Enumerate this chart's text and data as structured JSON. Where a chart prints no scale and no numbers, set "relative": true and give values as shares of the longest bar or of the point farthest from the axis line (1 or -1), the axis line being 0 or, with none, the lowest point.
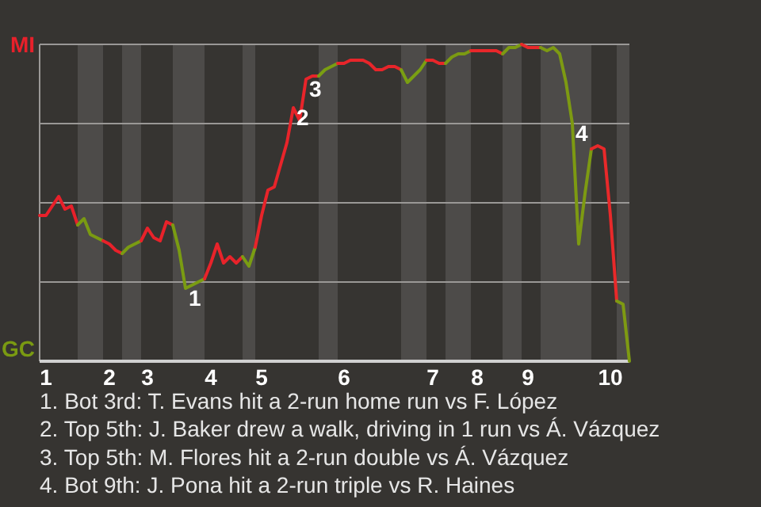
{
  "chart_data": {
    "type": "line",
    "relative": true,
    "categories": [
      null,
      "1",
      null,
      null,
      null,
      null,
      null,
      null,
      null,
      null,
      null,
      "2",
      null,
      null,
      null,
      null,
      null,
      "3",
      null,
      null,
      null,
      null,
      null,
      null,
      null,
      null,
      null,
      "4",
      null,
      null,
      null,
      null,
      null,
      null,
      null,
      "5",
      null,
      null,
      null,
      null,
      null,
      null,
      null,
      null,
      null,
      null,
      null,
      null,
      "6",
      null,
      null,
      null,
      null,
      null,
      null,
      null,
      null,
      null,
      null,
      null,
      null,
      null,
      "7",
      null,
      null,
      null,
      null,
      null,
      null,
      "8",
      null,
      null,
      null,
      null,
      null,
      null,
      null,
      "9",
      null,
      null,
      null,
      null,
      null,
      null,
      null,
      null,
      null,
      null,
      null,
      null,
      "10",
      null,
      null,
      null
    ],
    "grid": "y",
    "marker": "none",
    "line_style": "solid",
    "series": [
      {
        "name": "MI",
        "color": "#e8202a",
        "values": [
          0.46,
          0.46,
          0.49,
          0.52,
          0.48,
          0.49,
          0.43,
          null,
          null,
          null,
          null,
          null,
          null,
          null,
          null,
          null,
          null,
          null,
          null,
          null,
          null,
          null,
          null,
          null,
          null,
          null,
          null,
          null,
          null,
          null,
          null,
          null,
          null,
          null,
          null,
          null,
          null,
          null,
          null,
          null,
          null,
          null,
          null,
          null,
          null,
          null,
          null,
          null,
          null,
          null,
          null,
          null,
          null,
          null,
          null,
          null,
          null,
          null,
          null,
          null,
          null,
          null,
          null,
          null,
          null,
          null,
          null,
          null,
          null,
          null,
          null,
          null,
          null,
          null,
          null,
          null,
          null,
          null,
          null,
          null,
          null,
          null,
          null,
          null,
          null,
          null,
          null,
          null,
          null,
          null,
          null,
          null,
          null,
          null
        ]
      },
      {
        "name": "GC",
        "color": "#7a9a12",
        "values": [
          null,
          null,
          null,
          null,
          null,
          null,
          0.43,
          0.45,
          0.4,
          0.39,
          0.38,
          null,
          null,
          null,
          null,
          null,
          null,
          null,
          null,
          null,
          null,
          null,
          null,
          null,
          null,
          null,
          null,
          null,
          null,
          null,
          null,
          null,
          null,
          null,
          null,
          null,
          null,
          null,
          null,
          null,
          null,
          null,
          null,
          null,
          null,
          null,
          null,
          null,
          null,
          null,
          null,
          null,
          null,
          null,
          null,
          null,
          null,
          null,
          null,
          null,
          null,
          null,
          null,
          null,
          null,
          null,
          null,
          null,
          null,
          null,
          null,
          null,
          null,
          null,
          null,
          null,
          null,
          null,
          null,
          null,
          null,
          null,
          null,
          null,
          null,
          null,
          null,
          null,
          null,
          null,
          null,
          null,
          null,
          null
        ]
      },
      {
        "color": "#e8212a",
        "values": [
          null,
          null,
          null,
          null,
          null,
          null,
          null,
          null,
          null,
          null,
          0.38,
          0.37,
          0.35,
          0.34,
          null,
          null,
          null,
          null,
          null,
          null,
          null,
          null,
          null,
          null,
          null,
          null,
          null,
          null,
          null,
          null,
          null,
          null,
          null,
          null,
          null,
          null,
          null,
          null,
          null,
          null,
          null,
          null,
          null,
          null,
          null,
          null,
          null,
          null,
          null,
          null,
          null,
          null,
          null,
          null,
          null,
          null,
          null,
          null,
          null,
          null,
          null,
          null,
          null,
          null,
          null,
          null,
          null,
          null,
          null,
          null,
          null,
          null,
          null,
          null,
          null,
          null,
          null,
          null,
          null,
          null,
          null,
          null,
          null,
          null,
          null,
          null,
          null,
          null,
          null,
          null,
          null,
          null,
          null,
          null
        ]
      },
      {
        "color": "#7a9b12",
        "values": [
          null,
          null,
          null,
          null,
          null,
          null,
          null,
          null,
          null,
          null,
          null,
          null,
          null,
          0.34,
          0.36,
          0.37,
          0.38,
          null,
          null,
          null,
          null,
          null,
          null,
          null,
          null,
          null,
          null,
          null,
          null,
          null,
          null,
          null,
          null,
          null,
          null,
          null,
          null,
          null,
          null,
          null,
          null,
          null,
          null,
          null,
          null,
          null,
          null,
          null,
          null,
          null,
          null,
          null,
          null,
          null,
          null,
          null,
          null,
          null,
          null,
          null,
          null,
          null,
          null,
          null,
          null,
          null,
          null,
          null,
          null,
          null,
          null,
          null,
          null,
          null,
          null,
          null,
          null,
          null,
          null,
          null,
          null,
          null,
          null,
          null,
          null,
          null,
          null,
          null,
          null,
          null,
          null,
          null,
          null,
          null
        ]
      },
      {
        "color": "#e8222a",
        "values": [
          null,
          null,
          null,
          null,
          null,
          null,
          null,
          null,
          null,
          null,
          null,
          null,
          null,
          null,
          null,
          null,
          0.38,
          0.42,
          0.39,
          0.38,
          0.44,
          0.43,
          null,
          null,
          null,
          null,
          null,
          null,
          null,
          null,
          null,
          null,
          null,
          null,
          null,
          null,
          null,
          null,
          null,
          null,
          null,
          null,
          null,
          null,
          null,
          null,
          null,
          null,
          null,
          null,
          null,
          null,
          null,
          null,
          null,
          null,
          null,
          null,
          null,
          null,
          null,
          null,
          null,
          null,
          null,
          null,
          null,
          null,
          null,
          null,
          null,
          null,
          null,
          null,
          null,
          null,
          null,
          null,
          null,
          null,
          null,
          null,
          null,
          null,
          null,
          null,
          null,
          null,
          null,
          null,
          null,
          null,
          null,
          null
        ]
      },
      {
        "color": "#7a9c12",
        "values": [
          null,
          null,
          null,
          null,
          null,
          null,
          null,
          null,
          null,
          null,
          null,
          null,
          null,
          null,
          null,
          null,
          null,
          null,
          null,
          null,
          null,
          0.43,
          0.35,
          0.23,
          0.24,
          0.25,
          0.26,
          null,
          null,
          null,
          null,
          null,
          null,
          null,
          null,
          null,
          null,
          null,
          null,
          null,
          null,
          null,
          null,
          null,
          null,
          null,
          null,
          null,
          null,
          null,
          null,
          null,
          null,
          null,
          null,
          null,
          null,
          null,
          null,
          null,
          null,
          null,
          null,
          null,
          null,
          null,
          null,
          null,
          null,
          null,
          null,
          null,
          null,
          null,
          null,
          null,
          null,
          null,
          null,
          null,
          null,
          null,
          null,
          null,
          null,
          null,
          null,
          null,
          null,
          null,
          null,
          null,
          null,
          null
        ]
      },
      {
        "color": "#e8232a",
        "values": [
          null,
          null,
          null,
          null,
          null,
          null,
          null,
          null,
          null,
          null,
          null,
          null,
          null,
          null,
          null,
          null,
          null,
          null,
          null,
          null,
          null,
          null,
          null,
          null,
          null,
          null,
          0.26,
          0.31,
          0.37,
          0.31,
          0.33,
          0.31,
          0.33,
          null,
          null,
          null,
          null,
          null,
          null,
          null,
          null,
          null,
          null,
          null,
          null,
          null,
          null,
          null,
          null,
          null,
          null,
          null,
          null,
          null,
          null,
          null,
          null,
          null,
          null,
          null,
          null,
          null,
          null,
          null,
          null,
          null,
          null,
          null,
          null,
          null,
          null,
          null,
          null,
          null,
          null,
          null,
          null,
          null,
          null,
          null,
          null,
          null,
          null,
          null,
          null,
          null,
          null,
          null,
          null,
          null,
          null,
          null,
          null,
          null
        ]
      },
      {
        "color": "#7a9d12",
        "values": [
          null,
          null,
          null,
          null,
          null,
          null,
          null,
          null,
          null,
          null,
          null,
          null,
          null,
          null,
          null,
          null,
          null,
          null,
          null,
          null,
          null,
          null,
          null,
          null,
          null,
          null,
          null,
          null,
          null,
          null,
          null,
          null,
          0.33,
          0.3,
          0.36,
          null,
          null,
          null,
          null,
          null,
          null,
          null,
          null,
          null,
          null,
          null,
          null,
          null,
          null,
          null,
          null,
          null,
          null,
          null,
          null,
          null,
          null,
          null,
          null,
          null,
          null,
          null,
          null,
          null,
          null,
          null,
          null,
          null,
          null,
          null,
          null,
          null,
          null,
          null,
          null,
          null,
          null,
          null,
          null,
          null,
          null,
          null,
          null,
          null,
          null,
          null,
          null,
          null,
          null,
          null,
          null,
          null,
          null,
          null
        ]
      },
      {
        "color": "#e8242a",
        "values": [
          null,
          null,
          null,
          null,
          null,
          null,
          null,
          null,
          null,
          null,
          null,
          null,
          null,
          null,
          null,
          null,
          null,
          null,
          null,
          null,
          null,
          null,
          null,
          null,
          null,
          null,
          null,
          null,
          null,
          null,
          null,
          null,
          null,
          null,
          0.36,
          0.46,
          0.54,
          0.55,
          0.62,
          0.69,
          0.8,
          0.76,
          0.89,
          0.9,
          0.9,
          null,
          null,
          null,
          null,
          null,
          null,
          null,
          null,
          null,
          null,
          null,
          null,
          null,
          null,
          null,
          null,
          null,
          null,
          null,
          null,
          null,
          null,
          null,
          null,
          null,
          null,
          null,
          null,
          null,
          null,
          null,
          null,
          null,
          null,
          null,
          null,
          null,
          null,
          null,
          null,
          null,
          null,
          null,
          null,
          null,
          null,
          null,
          null,
          null
        ]
      },
      {
        "color": "#7a9e12",
        "values": [
          null,
          null,
          null,
          null,
          null,
          null,
          null,
          null,
          null,
          null,
          null,
          null,
          null,
          null,
          null,
          null,
          null,
          null,
          null,
          null,
          null,
          null,
          null,
          null,
          null,
          null,
          null,
          null,
          null,
          null,
          null,
          null,
          null,
          null,
          null,
          null,
          null,
          null,
          null,
          null,
          null,
          null,
          null,
          null,
          0.9,
          0.92,
          0.93,
          0.94,
          null,
          null,
          null,
          null,
          null,
          null,
          null,
          null,
          null,
          null,
          null,
          null,
          null,
          null,
          null,
          null,
          null,
          null,
          null,
          null,
          null,
          null,
          null,
          null,
          null,
          null,
          null,
          null,
          null,
          null,
          null,
          null,
          null,
          null,
          null,
          null,
          null,
          null,
          null,
          null,
          null,
          null,
          null,
          null,
          null,
          null
        ]
      },
      {
        "color": "#e8252a",
        "values": [
          null,
          null,
          null,
          null,
          null,
          null,
          null,
          null,
          null,
          null,
          null,
          null,
          null,
          null,
          null,
          null,
          null,
          null,
          null,
          null,
          null,
          null,
          null,
          null,
          null,
          null,
          null,
          null,
          null,
          null,
          null,
          null,
          null,
          null,
          null,
          null,
          null,
          null,
          null,
          null,
          null,
          null,
          null,
          null,
          null,
          null,
          null,
          0.94,
          0.94,
          0.95,
          0.95,
          0.95,
          0.94,
          0.92,
          0.92,
          0.93,
          0.93,
          0.92,
          null,
          null,
          null,
          null,
          null,
          null,
          null,
          null,
          null,
          null,
          null,
          null,
          null,
          null,
          null,
          null,
          null,
          null,
          null,
          null,
          null,
          null,
          null,
          null,
          null,
          null,
          null,
          null,
          null,
          null,
          null,
          null,
          null,
          null,
          null,
          null
        ]
      },
      {
        "color": "#7a9f12",
        "values": [
          null,
          null,
          null,
          null,
          null,
          null,
          null,
          null,
          null,
          null,
          null,
          null,
          null,
          null,
          null,
          null,
          null,
          null,
          null,
          null,
          null,
          null,
          null,
          null,
          null,
          null,
          null,
          null,
          null,
          null,
          null,
          null,
          null,
          null,
          null,
          null,
          null,
          null,
          null,
          null,
          null,
          null,
          null,
          null,
          null,
          null,
          null,
          null,
          null,
          null,
          null,
          null,
          null,
          null,
          null,
          null,
          null,
          0.92,
          0.88,
          0.9,
          0.92,
          0.95,
          null,
          null,
          null,
          null,
          null,
          null,
          null,
          null,
          null,
          null,
          null,
          null,
          null,
          null,
          null,
          null,
          null,
          null,
          null,
          null,
          null,
          null,
          null,
          null,
          null,
          null,
          null,
          null,
          null,
          null,
          null,
          null
        ]
      },
      {
        "color": "#e8262a",
        "values": [
          null,
          null,
          null,
          null,
          null,
          null,
          null,
          null,
          null,
          null,
          null,
          null,
          null,
          null,
          null,
          null,
          null,
          null,
          null,
          null,
          null,
          null,
          null,
          null,
          null,
          null,
          null,
          null,
          null,
          null,
          null,
          null,
          null,
          null,
          null,
          null,
          null,
          null,
          null,
          null,
          null,
          null,
          null,
          null,
          null,
          null,
          null,
          null,
          null,
          null,
          null,
          null,
          null,
          null,
          null,
          null,
          null,
          null,
          null,
          null,
          null,
          0.95,
          0.95,
          0.94,
          0.94,
          null,
          null,
          null,
          null,
          null,
          null,
          null,
          null,
          null,
          null,
          null,
          null,
          null,
          null,
          null,
          null,
          null,
          null,
          null,
          null,
          null,
          null,
          null,
          null,
          null,
          null,
          null,
          null,
          null
        ]
      },
      {
        "color": "#7b9a12",
        "values": [
          null,
          null,
          null,
          null,
          null,
          null,
          null,
          null,
          null,
          null,
          null,
          null,
          null,
          null,
          null,
          null,
          null,
          null,
          null,
          null,
          null,
          null,
          null,
          null,
          null,
          null,
          null,
          null,
          null,
          null,
          null,
          null,
          null,
          null,
          null,
          null,
          null,
          null,
          null,
          null,
          null,
          null,
          null,
          null,
          null,
          null,
          null,
          null,
          null,
          null,
          null,
          null,
          null,
          null,
          null,
          null,
          null,
          null,
          null,
          null,
          null,
          null,
          null,
          null,
          0.94,
          0.96,
          0.97,
          0.97,
          0.98,
          null,
          null,
          null,
          null,
          null,
          null,
          null,
          null,
          null,
          null,
          null,
          null,
          null,
          null,
          null,
          null,
          null,
          null,
          null,
          null,
          null,
          null,
          null,
          null,
          null
        ]
      },
      {
        "color": "#e8272a",
        "values": [
          null,
          null,
          null,
          null,
          null,
          null,
          null,
          null,
          null,
          null,
          null,
          null,
          null,
          null,
          null,
          null,
          null,
          null,
          null,
          null,
          null,
          null,
          null,
          null,
          null,
          null,
          null,
          null,
          null,
          null,
          null,
          null,
          null,
          null,
          null,
          null,
          null,
          null,
          null,
          null,
          null,
          null,
          null,
          null,
          null,
          null,
          null,
          null,
          null,
          null,
          null,
          null,
          null,
          null,
          null,
          null,
          null,
          null,
          null,
          null,
          null,
          null,
          null,
          null,
          null,
          null,
          null,
          null,
          0.98,
          0.98,
          0.98,
          0.98,
          0.98,
          0.97,
          null,
          null,
          null,
          null,
          null,
          null,
          null,
          null,
          null,
          null,
          null,
          null,
          null,
          null,
          null,
          null,
          null,
          null,
          null,
          null
        ]
      },
      {
        "color": "#7c9a12",
        "values": [
          null,
          null,
          null,
          null,
          null,
          null,
          null,
          null,
          null,
          null,
          null,
          null,
          null,
          null,
          null,
          null,
          null,
          null,
          null,
          null,
          null,
          null,
          null,
          null,
          null,
          null,
          null,
          null,
          null,
          null,
          null,
          null,
          null,
          null,
          null,
          null,
          null,
          null,
          null,
          null,
          null,
          null,
          null,
          null,
          null,
          null,
          null,
          null,
          null,
          null,
          null,
          null,
          null,
          null,
          null,
          null,
          null,
          null,
          null,
          null,
          null,
          null,
          null,
          null,
          null,
          null,
          null,
          null,
          null,
          null,
          null,
          null,
          null,
          0.97,
          0.99,
          0.99,
          1,
          null,
          null,
          null,
          null,
          null,
          null,
          null,
          null,
          null,
          null,
          null,
          null,
          null,
          null,
          null,
          null,
          null
        ]
      },
      {
        "color": "#e8282a",
        "values": [
          null,
          null,
          null,
          null,
          null,
          null,
          null,
          null,
          null,
          null,
          null,
          null,
          null,
          null,
          null,
          null,
          null,
          null,
          null,
          null,
          null,
          null,
          null,
          null,
          null,
          null,
          null,
          null,
          null,
          null,
          null,
          null,
          null,
          null,
          null,
          null,
          null,
          null,
          null,
          null,
          null,
          null,
          null,
          null,
          null,
          null,
          null,
          null,
          null,
          null,
          null,
          null,
          null,
          null,
          null,
          null,
          null,
          null,
          null,
          null,
          null,
          null,
          null,
          null,
          null,
          null,
          null,
          null,
          null,
          null,
          null,
          null,
          null,
          null,
          null,
          null,
          1,
          0.99,
          0.99,
          0.99,
          null,
          null,
          null,
          null,
          null,
          null,
          null,
          null,
          null,
          null,
          null,
          null,
          null,
          null
        ]
      },
      {
        "color": "#7d9a12",
        "values": [
          null,
          null,
          null,
          null,
          null,
          null,
          null,
          null,
          null,
          null,
          null,
          null,
          null,
          null,
          null,
          null,
          null,
          null,
          null,
          null,
          null,
          null,
          null,
          null,
          null,
          null,
          null,
          null,
          null,
          null,
          null,
          null,
          null,
          null,
          null,
          null,
          null,
          null,
          null,
          null,
          null,
          null,
          null,
          null,
          null,
          null,
          null,
          null,
          null,
          null,
          null,
          null,
          null,
          null,
          null,
          null,
          null,
          null,
          null,
          null,
          null,
          null,
          null,
          null,
          null,
          null,
          null,
          null,
          null,
          null,
          null,
          null,
          null,
          null,
          null,
          null,
          null,
          null,
          null,
          0.99,
          0.98,
          0.99,
          0.97,
          0.88,
          0.75,
          0.37,
          0.53,
          0.67,
          null,
          null,
          null,
          null,
          null,
          null
        ]
      },
      {
        "color": "#e8292a",
        "values": [
          null,
          null,
          null,
          null,
          null,
          null,
          null,
          null,
          null,
          null,
          null,
          null,
          null,
          null,
          null,
          null,
          null,
          null,
          null,
          null,
          null,
          null,
          null,
          null,
          null,
          null,
          null,
          null,
          null,
          null,
          null,
          null,
          null,
          null,
          null,
          null,
          null,
          null,
          null,
          null,
          null,
          null,
          null,
          null,
          null,
          null,
          null,
          null,
          null,
          null,
          null,
          null,
          null,
          null,
          null,
          null,
          null,
          null,
          null,
          null,
          null,
          null,
          null,
          null,
          null,
          null,
          null,
          null,
          null,
          null,
          null,
          null,
          null,
          null,
          null,
          null,
          null,
          null,
          null,
          null,
          null,
          null,
          null,
          null,
          null,
          null,
          null,
          0.67,
          0.68,
          0.67,
          0.46,
          0.19,
          null,
          null
        ]
      },
      {
        "color": "#7e9a12",
        "values": [
          null,
          null,
          null,
          null,
          null,
          null,
          null,
          null,
          null,
          null,
          null,
          null,
          null,
          null,
          null,
          null,
          null,
          null,
          null,
          null,
          null,
          null,
          null,
          null,
          null,
          null,
          null,
          null,
          null,
          null,
          null,
          null,
          null,
          null,
          null,
          null,
          null,
          null,
          null,
          null,
          null,
          null,
          null,
          null,
          null,
          null,
          null,
          null,
          null,
          null,
          null,
          null,
          null,
          null,
          null,
          null,
          null,
          null,
          null,
          null,
          null,
          null,
          null,
          null,
          null,
          null,
          null,
          null,
          null,
          null,
          null,
          null,
          null,
          null,
          null,
          null,
          null,
          null,
          null,
          null,
          null,
          null,
          null,
          null,
          null,
          null,
          null,
          null,
          null,
          null,
          null,
          0.19,
          0.18,
          0
        ]
      }
    ],
    "annotations": [
      {
        "text": "1",
        "y": 0.23
      },
      {
        "text": "2",
        "y": 0.8
      },
      {
        "text": "3",
        "y": 0.89
      },
      {
        "text": "4",
        "y": 0.75
      },
      "1. Bot 3rd: T. Evans hit a 2-run home run vs F. López",
      "2. Top 5th: J. Baker drew a walk, driving in 1 run vs Á. Vázquez",
      "3. Top 5th: M. Flores hit a 2-run double vs Á. Vázquez",
      "4. Bot 9th: J. Pona hit a 2-run triple vs R. Haines"
    ]
  }
}
